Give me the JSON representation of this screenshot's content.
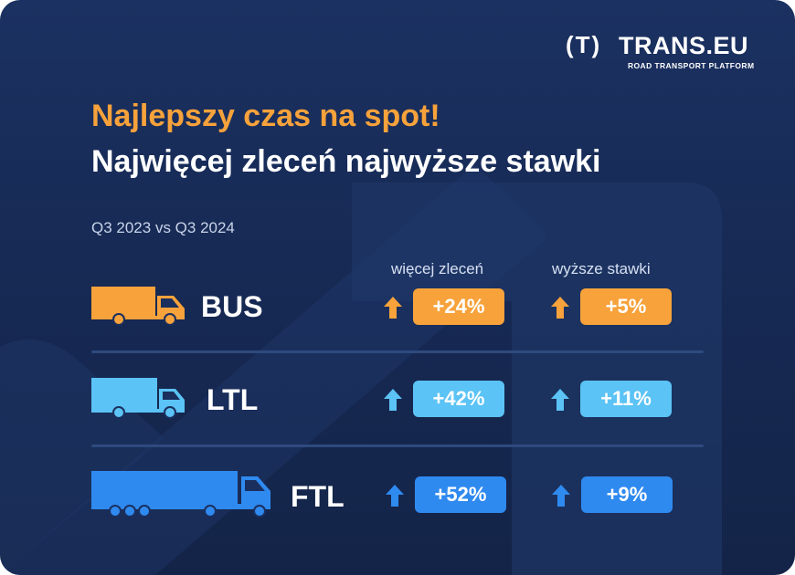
{
  "brand": {
    "logo_mark": "(T)",
    "name": "TRANS.EU",
    "tagline": "ROAD TRANSPORT PLATFORM"
  },
  "headline": {
    "line1": "Najlepszy czas na spot!",
    "line2": "Najwięcej zleceń najwyższe stawki"
  },
  "period": "Q3 2023 vs Q3 2024",
  "columns": {
    "orders": "więcej zleceń",
    "rates": "wyższe stawki"
  },
  "colors": {
    "background": "#1a2f5e",
    "bus": "#f7a23b",
    "ltl": "#5bc3f5",
    "ftl": "#2f8af0"
  },
  "rows": [
    {
      "vehicle": "BUS",
      "icon": "van-icon",
      "orders": "+24%",
      "rates": "+5%"
    },
    {
      "vehicle": "LTL",
      "icon": "box-truck-icon",
      "orders": "+42%",
      "rates": "+11%"
    },
    {
      "vehicle": "FTL",
      "icon": "semi-truck-icon",
      "orders": "+52%",
      "rates": "+9%"
    }
  ]
}
